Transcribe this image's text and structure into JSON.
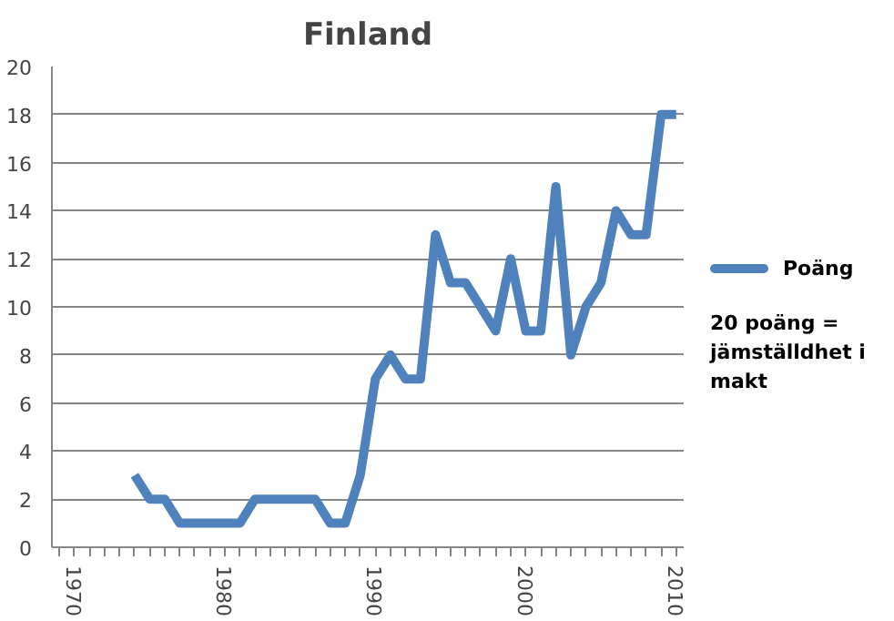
{
  "chart_data": {
    "type": "line",
    "title": "Finland",
    "x": [
      1974,
      1975,
      1976,
      1977,
      1978,
      1979,
      1980,
      1981,
      1982,
      1983,
      1984,
      1985,
      1986,
      1987,
      1988,
      1989,
      1990,
      1991,
      1992,
      1993,
      1994,
      1995,
      1996,
      1997,
      1998,
      1999,
      2000,
      2001,
      2002,
      2003,
      2004,
      2005,
      2006,
      2007,
      2008,
      2009,
      2010
    ],
    "series": [
      {
        "name": "Poäng",
        "color": "#4f81bd",
        "values": [
          3,
          2,
          2,
          1,
          1,
          1,
          1,
          1,
          2,
          2,
          2,
          2,
          2,
          1,
          1,
          3,
          7,
          8,
          7,
          7,
          13,
          11,
          11,
          10,
          9,
          12,
          9,
          9,
          15,
          8,
          10,
          11,
          14,
          13,
          13,
          18,
          18
        ]
      }
    ],
    "xlim": [
      1968.5,
      2010.5
    ],
    "xticks": [
      {
        "value": 1969,
        "label": null
      },
      1970,
      {
        "value": 1971,
        "label": null
      },
      {
        "value": 1972,
        "label": null
      },
      {
        "value": 1973,
        "label": null
      },
      {
        "value": 1974,
        "label": null
      },
      {
        "value": 1975,
        "label": null
      },
      {
        "value": 1976,
        "label": null
      },
      {
        "value": 1977,
        "label": null
      },
      {
        "value": 1978,
        "label": null
      },
      {
        "value": 1979,
        "label": null
      },
      1980,
      {
        "value": 1981,
        "label": null
      },
      {
        "value": 1982,
        "label": null
      },
      {
        "value": 1983,
        "label": null
      },
      {
        "value": 1984,
        "label": null
      },
      {
        "value": 1985,
        "label": null
      },
      {
        "value": 1986,
        "label": null
      },
      {
        "value": 1987,
        "label": null
      },
      {
        "value": 1988,
        "label": null
      },
      {
        "value": 1989,
        "label": null
      },
      1990,
      {
        "value": 1991,
        "label": null
      },
      {
        "value": 1992,
        "label": null
      },
      {
        "value": 1993,
        "label": null
      },
      {
        "value": 1994,
        "label": null
      },
      {
        "value": 1995,
        "label": null
      },
      {
        "value": 1996,
        "label": null
      },
      {
        "value": 1997,
        "label": null
      },
      {
        "value": 1998,
        "label": null
      },
      {
        "value": 1999,
        "label": null
      },
      2000,
      {
        "value": 2001,
        "label": null
      },
      {
        "value": 2002,
        "label": null
      },
      {
        "value": 2003,
        "label": null
      },
      {
        "value": 2004,
        "label": null
      },
      {
        "value": 2005,
        "label": null
      },
      {
        "value": 2006,
        "label": null
      },
      {
        "value": 2007,
        "label": null
      },
      {
        "value": 2008,
        "label": null
      },
      {
        "value": 2009,
        "label": null
      },
      2010
    ],
    "ylim": [
      0,
      20
    ],
    "yticks": [
      0,
      2,
      4,
      6,
      8,
      10,
      12,
      14,
      16,
      18,
      20
    ],
    "grid": "y",
    "legend": "right",
    "marker": "none",
    "line_style": "solid",
    "annotations": [
      "20 poäng = jämställdhet i makt"
    ]
  }
}
